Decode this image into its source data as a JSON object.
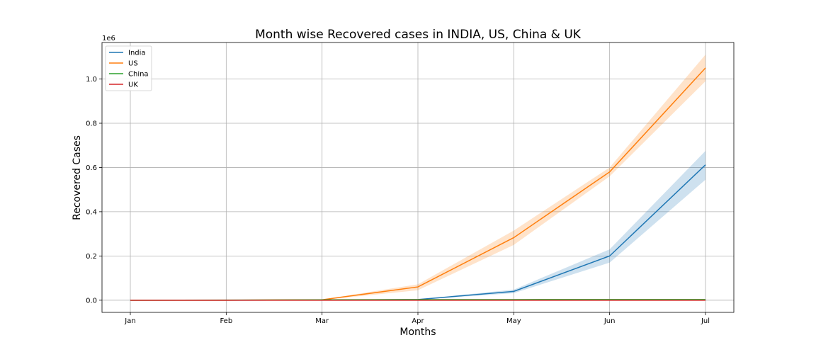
{
  "chart_data": {
    "type": "line",
    "title": "Month wise Recovered cases in INDIA, US, China & UK",
    "xlabel": "Months",
    "ylabel": "Recovered Cases",
    "y_scale_label": "1e6",
    "categories": [
      "Jan",
      "Feb",
      "Mar",
      "Apr",
      "May",
      "Jun",
      "Jul"
    ],
    "ylim": [
      -0.055,
      1.165
    ],
    "yticks": [
      0.0,
      0.2,
      0.4,
      0.6,
      0.8,
      1.0
    ],
    "ytick_labels": [
      "0.0",
      "0.2",
      "0.4",
      "0.6",
      "0.8",
      "1.0"
    ],
    "grid": true,
    "legend_position": "top-left",
    "series": [
      {
        "name": "India",
        "color": "#1f77b4",
        "values": [
          0.0,
          0.0,
          0.0002,
          0.003,
          0.04,
          0.2,
          0.612
        ],
        "ci_low": [
          0.0,
          0.0,
          0.0001,
          0.002,
          0.032,
          0.17,
          0.545
        ],
        "ci_high": [
          0.0,
          0.0,
          0.0003,
          0.004,
          0.048,
          0.23,
          0.675
        ]
      },
      {
        "name": "US",
        "color": "#ff7f0e",
        "values": [
          0.0,
          0.0,
          0.002,
          0.06,
          0.283,
          0.58,
          1.05
        ],
        "ci_low": [
          0.0,
          0.0,
          0.001,
          0.045,
          0.25,
          0.56,
          0.99
        ],
        "ci_high": [
          0.0,
          0.0,
          0.003,
          0.072,
          0.315,
          0.6,
          1.11
        ]
      },
      {
        "name": "China",
        "color": "#2ca02c",
        "values": [
          0.0,
          0.0005,
          0.002,
          0.0025,
          0.0028,
          0.003,
          0.003
        ],
        "ci_low": [
          0.0,
          0.0003,
          0.0015,
          0.002,
          0.0025,
          0.0028,
          0.0028
        ],
        "ci_high": [
          0.0,
          0.0007,
          0.0025,
          0.003,
          0.0031,
          0.0032,
          0.0032
        ]
      },
      {
        "name": "UK",
        "color": "#d62728",
        "values": [
          0.0,
          0.0,
          0.0,
          0.0,
          0.0,
          0.0,
          0.0
        ],
        "ci_low": [
          0.0,
          0.0,
          0.0,
          0.0,
          0.0,
          0.0,
          0.0
        ],
        "ci_high": [
          0.0,
          0.0,
          0.0,
          0.0,
          0.0,
          0.0,
          0.0
        ]
      }
    ]
  }
}
